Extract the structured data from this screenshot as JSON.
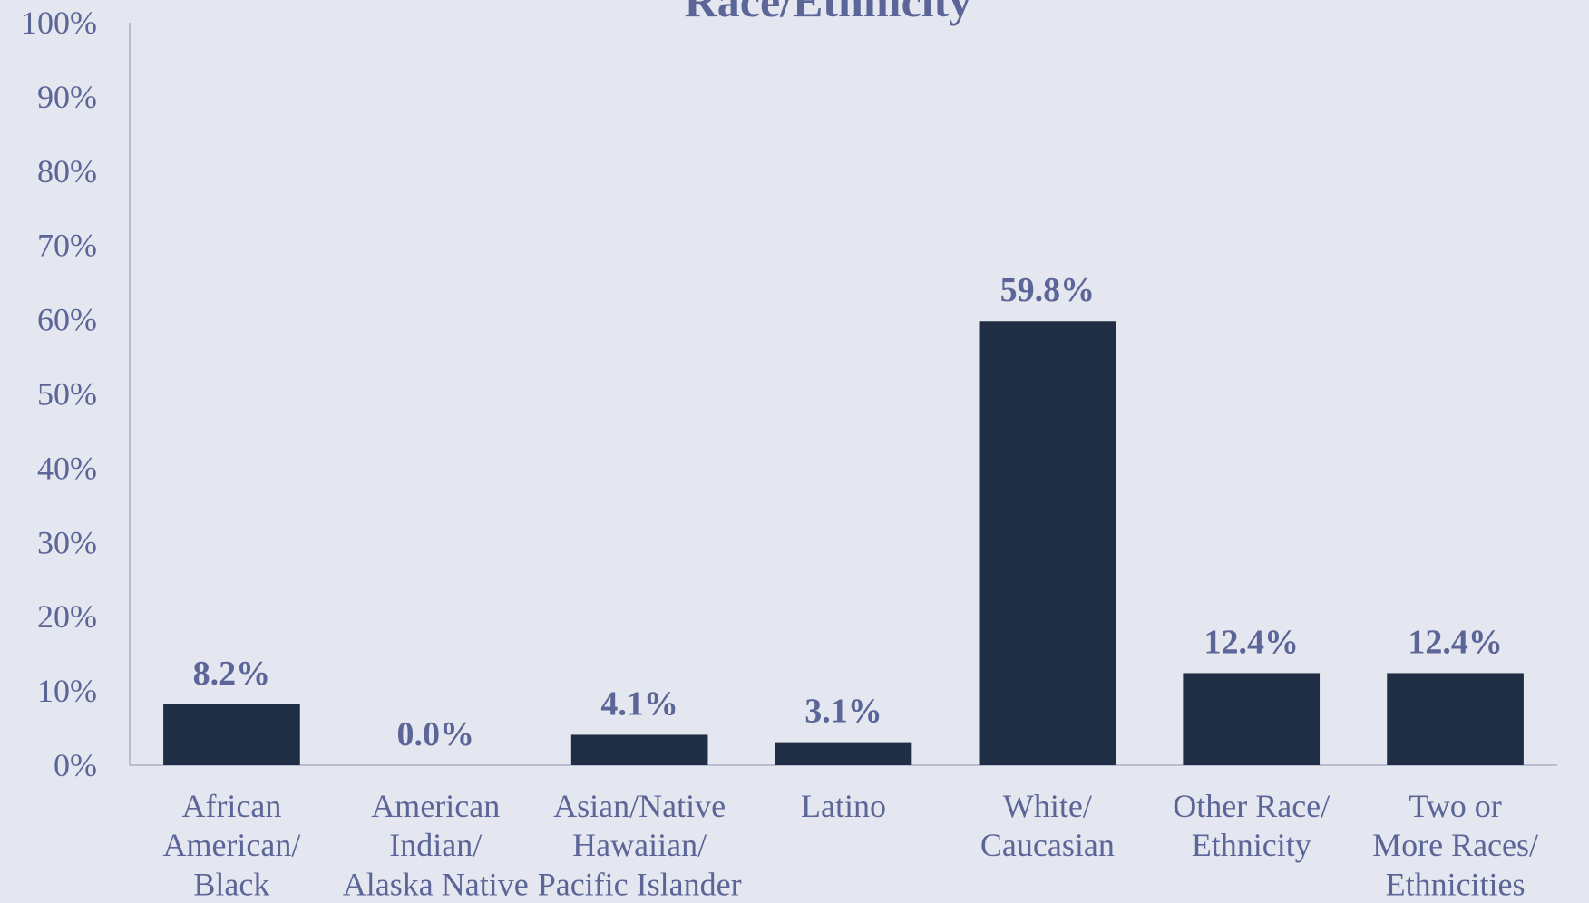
{
  "chart_data": {
    "type": "bar",
    "title": "Race/Ethnicity",
    "categories": [
      "African\nAmerican/\nBlack",
      "American\nIndian/\nAlaska Native",
      "Asian/Native\nHawaiian/\nPacific Islander",
      "Latino",
      "White/\nCaucasian",
      "Other Race/\nEthnicity",
      "Two or\nMore Races/\nEthnicities"
    ],
    "values": [
      8.2,
      0.0,
      4.1,
      3.1,
      59.8,
      12.4,
      12.4
    ],
    "value_labels": [
      "8.2%",
      "0.0%",
      "4.1%",
      "3.1%",
      "59.8%",
      "12.4%",
      "12.4%"
    ],
    "color": "#1f2e45",
    "ylim": [
      0,
      100
    ],
    "yticks": [
      {
        "value": 0,
        "label": "0%"
      },
      {
        "value": 10,
        "label": "10%"
      },
      {
        "value": 20,
        "label": "20%"
      },
      {
        "value": 30,
        "label": "30%"
      },
      {
        "value": 40,
        "label": "40%"
      },
      {
        "value": 50,
        "label": "50%"
      },
      {
        "value": 60,
        "label": "60%"
      },
      {
        "value": 70,
        "label": "70%"
      },
      {
        "value": 80,
        "label": "80%"
      },
      {
        "value": 90,
        "label": "90%"
      },
      {
        "value": 100,
        "label": "100%"
      }
    ],
    "grid": false
  }
}
